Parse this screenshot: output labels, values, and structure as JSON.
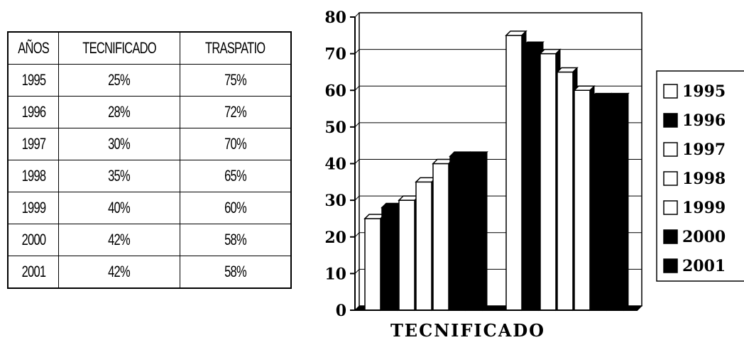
{
  "table": {
    "headers": [
      "AÑOS",
      "TECNIFICADO",
      "TRASPATIO"
    ],
    "rows": [
      [
        "1995",
        "25%",
        "75%"
      ],
      [
        "1996",
        "28%",
        "72%"
      ],
      [
        "1997",
        "30%",
        "70%"
      ],
      [
        "1998",
        "35%",
        "65%"
      ],
      [
        "1999",
        "40%",
        "60%"
      ],
      [
        "2000",
        "42%",
        "58%"
      ],
      [
        "2001",
        "42%",
        "58%"
      ]
    ]
  },
  "chart_data": {
    "type": "bar",
    "xlabel": "TECNIFICADO",
    "ylim": [
      0,
      80
    ],
    "yticks": [
      "0",
      "10",
      "20",
      "30",
      "40",
      "50",
      "60",
      "70",
      "80"
    ],
    "grid": true,
    "legend_position": "right",
    "groups": [
      {
        "values": [
          25,
          28,
          30,
          35,
          40,
          42,
          42
        ]
      },
      {
        "values": [
          75,
          72,
          70,
          65,
          60,
          58,
          58
        ]
      }
    ],
    "series": [
      {
        "name": "1995",
        "color": "#ffffff"
      },
      {
        "name": "1996",
        "color": "#000000"
      },
      {
        "name": "1997",
        "color": "#ffffff"
      },
      {
        "name": "1998",
        "color": "#ffffff"
      },
      {
        "name": "1999",
        "color": "#ffffff"
      },
      {
        "name": "2000",
        "color": "#000000"
      },
      {
        "name": "2001",
        "color": "#000000"
      }
    ]
  }
}
